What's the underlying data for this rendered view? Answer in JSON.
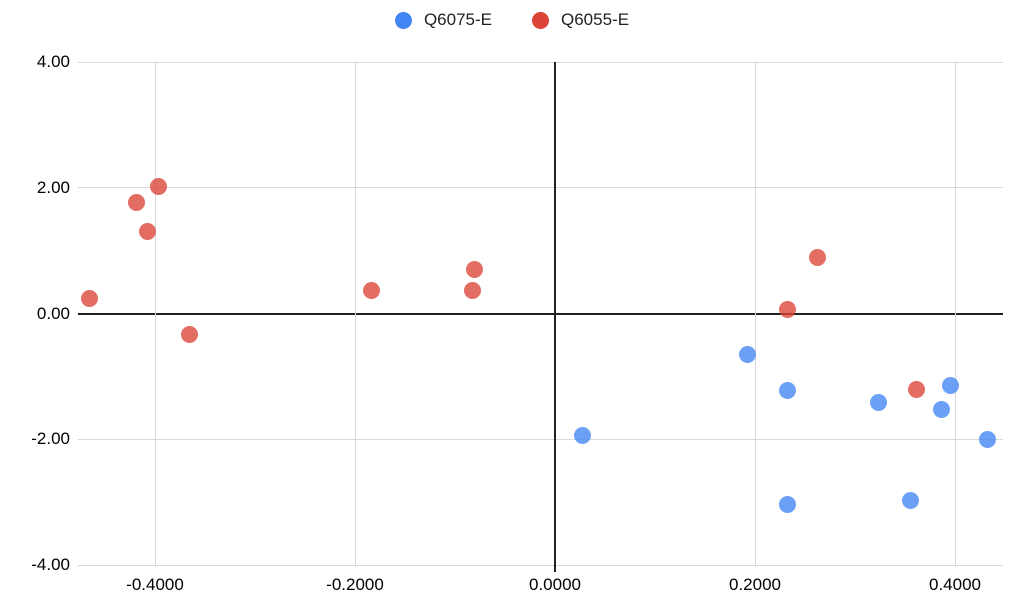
{
  "chart_data": {
    "type": "scatter",
    "title": "",
    "xlabel": "",
    "ylabel": "",
    "grid": true,
    "legend_position": "top-center",
    "xlim": [
      -0.477,
      0.448
    ],
    "ylim": [
      -4,
      4
    ],
    "x_ticks": [
      {
        "value": -0.4,
        "label": "-0.4000"
      },
      {
        "value": -0.2,
        "label": "-0.2000"
      },
      {
        "value": 0.0,
        "label": "0.0000"
      },
      {
        "value": 0.2,
        "label": "0.2000"
      },
      {
        "value": 0.4,
        "label": "0.4000"
      }
    ],
    "y_ticks": [
      {
        "value": 4,
        "label": "4.00"
      },
      {
        "value": 2,
        "label": "2.00"
      },
      {
        "value": 0,
        "label": "0.00"
      },
      {
        "value": -2,
        "label": "-2.00"
      },
      {
        "value": -4,
        "label": "-4.00"
      }
    ],
    "series": [
      {
        "name": "Q6075-E",
        "color": "#4285F4",
        "points": [
          [
            0.027,
            -1.94
          ],
          [
            0.192,
            -0.66
          ],
          [
            0.232,
            -1.22
          ],
          [
            0.323,
            -1.41
          ],
          [
            0.395,
            -1.14
          ],
          [
            0.386,
            -1.52
          ],
          [
            0.432,
            -2.0
          ],
          [
            0.232,
            -3.04
          ],
          [
            0.355,
            -2.98
          ]
        ]
      },
      {
        "name": "Q6055-E",
        "color": "#DB4437",
        "points": [
          [
            -0.466,
            0.24
          ],
          [
            -0.419,
            1.77
          ],
          [
            -0.397,
            2.02
          ],
          [
            -0.408,
            1.31
          ],
          [
            -0.366,
            -0.34
          ],
          [
            -0.184,
            0.36
          ],
          [
            -0.081,
            0.7
          ],
          [
            -0.083,
            0.37
          ],
          [
            0.262,
            0.89
          ],
          [
            0.232,
            0.07
          ],
          [
            0.361,
            -1.21
          ]
        ]
      }
    ],
    "marker_opacity": 0.78
  },
  "colors": {
    "background": "#FFFFFF",
    "gridline": "#D9D9D9",
    "zero_axis": "#212121",
    "axis_text": "#000000",
    "legend_text": "#212121"
  }
}
